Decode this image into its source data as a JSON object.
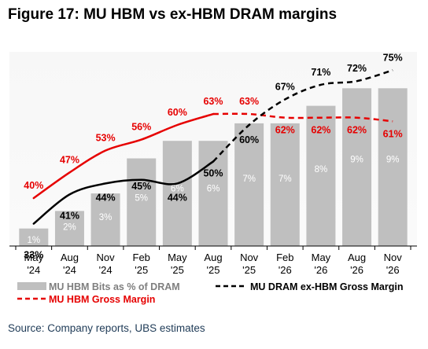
{
  "figure": {
    "title": "Figure 17: MU HBM vs ex-HBM DRAM margins",
    "source": "Source: Company reports, UBS estimates"
  },
  "chart_data": {
    "type": "bar",
    "categories": [
      [
        "May",
        "'24"
      ],
      [
        "Aug",
        "'24"
      ],
      [
        "Nov",
        "'24"
      ],
      [
        "Feb",
        "'25"
      ],
      [
        "May",
        "'25"
      ],
      [
        "Aug",
        "'25"
      ],
      [
        "Nov",
        "'25"
      ],
      [
        "Feb",
        "'26"
      ],
      [
        "May",
        "'26"
      ],
      [
        "Aug",
        "'26"
      ],
      [
        "Nov",
        "'26"
      ]
    ],
    "ylim": [
      0,
      80
    ],
    "grid": false,
    "legend_position": "bottom",
    "series": [
      {
        "name": "MU HBM Bits as % of DRAM",
        "kind": "bar",
        "color": "#bfbfbf",
        "label_color": "#ffffff",
        "values": [
          1,
          2,
          3,
          5,
          6,
          6,
          7,
          7,
          8,
          9,
          9
        ],
        "labels": [
          "1%",
          "2%",
          "3%",
          "5%",
          "6%",
          "6%",
          "7%",
          "7%",
          "8%",
          "9%",
          "9%"
        ]
      },
      {
        "name": "MU DRAM ex-HBM Gross Margin",
        "kind": "line",
        "style": "dashed-after-actual",
        "color": "#000000",
        "values": [
          33,
          41,
          44,
          45,
          44,
          50,
          60,
          67,
          71,
          72,
          75
        ],
        "labels": [
          "33%",
          "41%",
          "44%",
          "45%",
          "44%",
          "50%",
          "60%",
          "67%",
          "71%",
          "72%",
          "75%"
        ]
      },
      {
        "name": "MU HBM Gross Margin",
        "kind": "line",
        "style": "dashed-after-actual",
        "color": "#e60000",
        "values": [
          40,
          47,
          53,
          56,
          60,
          63,
          63,
          62,
          62,
          62,
          61
        ],
        "labels": [
          "40%",
          "47%",
          "53%",
          "56%",
          "60%",
          "63%",
          "63%",
          "62%",
          "62%",
          "62%",
          "61%"
        ]
      }
    ]
  }
}
